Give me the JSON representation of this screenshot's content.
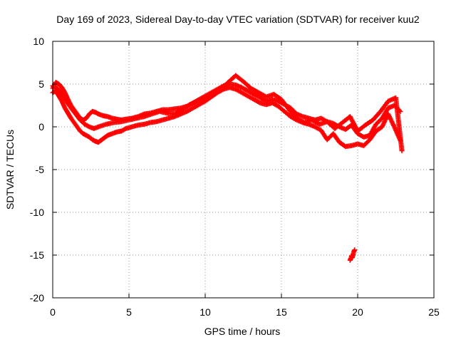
{
  "chart_data": {
    "type": "scatter",
    "title": "Day 169 of 2023, Sidereal Day-to-day VTEC variation (SDTVAR) for receiver kuu2",
    "xlabel": "GPS time / hours",
    "ylabel": "SDTVAR / TECUs",
    "xlim": [
      0,
      25
    ],
    "ylim": [
      -20,
      10
    ],
    "xticks": [
      0,
      5,
      10,
      15,
      20,
      25
    ],
    "yticks": [
      -20,
      -15,
      -10,
      -5,
      0,
      5,
      10
    ],
    "grid": true,
    "marker": "plus",
    "color": "#ff0000",
    "series": [
      {
        "name": "track-a",
        "x": [
          0.0,
          0.2,
          0.4,
          0.6,
          0.8,
          1.0,
          1.2,
          1.4,
          1.6,
          1.8,
          2.0,
          2.2,
          2.4,
          2.6,
          2.8,
          3.0,
          3.3,
          3.6,
          3.9,
          4.2,
          4.5,
          4.8,
          5.2,
          5.6,
          6.0,
          6.4,
          6.8,
          7.2,
          7.6,
          8.0,
          8.4,
          8.8,
          9.2,
          9.6,
          10.0,
          10.4,
          10.8,
          11.2,
          11.6,
          12.0,
          12.4,
          12.8,
          13.2,
          13.6,
          14.0,
          14.4,
          14.8,
          15.2,
          15.6,
          16.0,
          16.4,
          16.8,
          17.2,
          17.6,
          18.0,
          18.4,
          18.8,
          19.2,
          19.6,
          20.0,
          20.4,
          20.8,
          21.2,
          21.6,
          22.0,
          22.4,
          22.8
        ],
        "y": [
          4.5,
          5.2,
          5.0,
          4.6,
          4.0,
          3.2,
          2.5,
          2.0,
          1.5,
          1.0,
          0.8,
          1.0,
          1.5,
          1.8,
          1.7,
          1.5,
          1.3,
          1.2,
          1.0,
          0.9,
          0.8,
          0.9,
          1.0,
          1.2,
          1.5,
          1.6,
          1.8,
          2.0,
          2.0,
          2.1,
          2.2,
          2.4,
          2.8,
          3.2,
          3.6,
          4.0,
          4.4,
          4.8,
          5.0,
          4.9,
          4.6,
          4.2,
          3.8,
          3.4,
          3.0,
          3.2,
          3.0,
          2.6,
          2.2,
          1.5,
          1.2,
          1.0,
          0.8,
          1.0,
          0.6,
          0.4,
          0.0,
          -0.3,
          0.2,
          -0.8,
          -1.2,
          -1.0,
          0.3,
          1.0,
          2.2,
          2.5,
          1.8
        ]
      },
      {
        "name": "track-b",
        "x": [
          0.0,
          0.2,
          0.4,
          0.6,
          0.8,
          1.0,
          1.2,
          1.4,
          1.6,
          1.8,
          2.0,
          2.2,
          2.4,
          2.6,
          2.8,
          3.0,
          3.3,
          3.6,
          3.9,
          4.2,
          4.5,
          4.8,
          5.2,
          5.6,
          6.0,
          6.4,
          6.8,
          7.2,
          7.6,
          8.0,
          8.4,
          8.8,
          9.2,
          9.6,
          10.0,
          10.4,
          10.8,
          11.2,
          11.6,
          12.0,
          12.4,
          12.8,
          13.2,
          13.6,
          14.0,
          14.4,
          14.8,
          15.2,
          15.6,
          16.0,
          16.4,
          16.8,
          17.2,
          17.6,
          18.0,
          18.4,
          18.8,
          19.2,
          19.6,
          20.0,
          20.4,
          20.8,
          21.2,
          21.6,
          22.0,
          22.4,
          22.8
        ],
        "y": [
          4.0,
          4.2,
          3.6,
          3.0,
          2.2,
          1.6,
          1.0,
          0.5,
          0.0,
          -0.5,
          -0.8,
          -1.0,
          -1.2,
          -1.5,
          -1.7,
          -1.8,
          -1.4,
          -1.0,
          -0.8,
          -0.6,
          -0.5,
          -0.2,
          0.0,
          0.2,
          0.3,
          0.5,
          0.6,
          0.8,
          1.0,
          1.2,
          1.5,
          1.8,
          2.2,
          2.6,
          3.0,
          3.5,
          4.0,
          4.4,
          4.6,
          4.4,
          4.0,
          3.6,
          3.2,
          2.8,
          2.6,
          2.8,
          2.4,
          1.8,
          1.2,
          0.8,
          0.5,
          0.3,
          0.0,
          -0.4,
          -1.5,
          -0.8,
          -1.8,
          -2.3,
          -2.2,
          -2.0,
          -2.2,
          -1.5,
          -0.5,
          0.0,
          1.5,
          0.0,
          -1.6
        ]
      },
      {
        "name": "track-c",
        "x": [
          0.0,
          0.3,
          0.6,
          0.9,
          1.2,
          1.5,
          1.8,
          2.1,
          2.4,
          2.7,
          3.0,
          3.5,
          4.0,
          4.5,
          5.0,
          5.5,
          6.0,
          6.5,
          7.0,
          7.5,
          8.0,
          8.5,
          9.0,
          9.5,
          10.0,
          10.5,
          11.0,
          11.5,
          12.0,
          12.5,
          13.0,
          13.5,
          14.0,
          14.5,
          15.0,
          15.5,
          16.0,
          16.5,
          17.0,
          17.5,
          18.0,
          18.5,
          19.0,
          19.5,
          20.0,
          20.5,
          21.0,
          21.5,
          22.0,
          22.5,
          22.9
        ],
        "y": [
          4.8,
          4.5,
          3.8,
          3.0,
          2.2,
          1.5,
          0.8,
          0.3,
          0.0,
          -0.2,
          0.0,
          0.3,
          0.5,
          0.6,
          0.8,
          1.0,
          1.2,
          1.5,
          1.8,
          1.6,
          1.5,
          2.0,
          2.6,
          3.0,
          3.3,
          3.8,
          4.3,
          5.2,
          6.0,
          5.3,
          4.5,
          4.0,
          3.5,
          3.8,
          3.2,
          2.0,
          1.0,
          0.5,
          0.8,
          0.3,
          0.6,
          -0.2,
          0.5,
          1.2,
          -0.5,
          0.2,
          0.8,
          1.8,
          3.0,
          3.4,
          -2.8
        ]
      },
      {
        "name": "outlier",
        "x": [
          19.5,
          19.55,
          19.6,
          19.65,
          19.7,
          19.75,
          19.8
        ],
        "y": [
          -15.6,
          -15.4,
          -15.1,
          -15.3,
          -14.9,
          -14.6,
          -14.4
        ]
      }
    ]
  }
}
